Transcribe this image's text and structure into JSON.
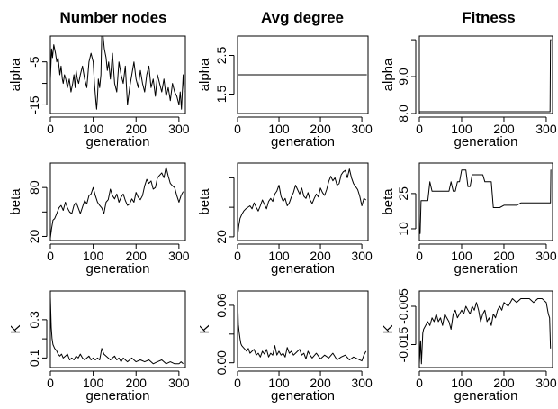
{
  "columns": [
    "Number nodes",
    "Avg degree",
    "Fitness"
  ],
  "chart_data": [
    {
      "type": "line",
      "column": "Number nodes",
      "xlabel": "generation",
      "ylabel": "alpha",
      "xlim": [
        0,
        315
      ],
      "ylim": [
        -17,
        1
      ],
      "xticks": [
        0,
        100,
        200,
        300
      ],
      "yticks": [
        -15,
        -10,
        -5
      ],
      "ytick_labels": [
        "-15",
        "",
        "-5"
      ],
      "x": [
        0,
        3,
        5,
        8,
        12,
        15,
        18,
        22,
        25,
        28,
        30,
        33,
        36,
        40,
        44,
        48,
        52,
        55,
        58,
        60,
        63,
        66,
        70,
        75,
        80,
        85,
        90,
        95,
        100,
        103,
        106,
        108,
        110,
        112,
        115,
        118,
        120,
        123,
        126,
        130,
        133,
        136,
        140,
        145,
        150,
        155,
        160,
        165,
        170,
        175,
        180,
        185,
        190,
        195,
        200,
        205,
        210,
        215,
        220,
        225,
        230,
        235,
        240,
        245,
        250,
        255,
        260,
        265,
        270,
        275,
        280,
        285,
        290,
        295,
        300,
        303,
        306,
        310,
        312
      ],
      "y": [
        -9,
        -2,
        -4,
        -1,
        -3,
        -5,
        -4,
        -8,
        -6,
        -9,
        -10,
        -8,
        -9,
        -11,
        -9,
        -12,
        -10,
        -8,
        -11,
        -7,
        -9,
        -10,
        -8,
        -6,
        -9,
        -11,
        -5,
        -3,
        -5,
        -10,
        -14,
        -16,
        -13,
        -9,
        -11,
        -8,
        1,
        1,
        -2,
        -4,
        -7,
        -5,
        -9,
        -3,
        -10,
        -12,
        -5,
        -8,
        -10,
        -6,
        -15,
        -11,
        -8,
        -5,
        -9,
        -11,
        -7,
        -10,
        -12,
        -8,
        -6,
        -11,
        -9,
        -13,
        -8,
        -10,
        -12,
        -9,
        -13,
        -11,
        -14,
        -10,
        -12,
        -13,
        -15,
        -12,
        -16,
        -8,
        -12
      ]
    },
    {
      "type": "line",
      "column": "Avg degree",
      "xlabel": "generation",
      "ylabel": "alpha",
      "xlim": [
        0,
        315
      ],
      "ylim": [
        1,
        3
      ],
      "xticks": [
        0,
        100,
        200,
        300
      ],
      "yticks": [
        1.5,
        2.5
      ],
      "ytick_labels": [
        "1.5",
        "2.5"
      ],
      "x": [
        0,
        312
      ],
      "y": [
        2,
        2
      ]
    },
    {
      "type": "line",
      "column": "Fitness",
      "xlabel": "generation",
      "ylabel": "alpha",
      "xlim": [
        0,
        315
      ],
      "ylim": [
        8,
        10.1
      ],
      "xticks": [
        0,
        100,
        200,
        300
      ],
      "yticks": [
        8,
        9,
        10
      ],
      "ytick_labels": [
        "8.0",
        "9.0",
        ""
      ],
      "x": [
        0,
        309,
        310,
        312
      ],
      "y": [
        8.05,
        8.05,
        10,
        10
      ]
    },
    {
      "type": "line",
      "column": "Number nodes",
      "xlabel": "generation",
      "ylabel": "beta",
      "xlim": [
        0,
        315
      ],
      "ylim": [
        15,
        110
      ],
      "xticks": [
        0,
        100,
        200,
        300
      ],
      "yticks": [
        20,
        50,
        80
      ],
      "ytick_labels": [
        "20",
        "",
        "80"
      ],
      "x": [
        0,
        3,
        6,
        10,
        15,
        20,
        25,
        30,
        35,
        40,
        45,
        50,
        55,
        60,
        65,
        70,
        75,
        80,
        85,
        90,
        95,
        100,
        105,
        110,
        115,
        120,
        125,
        130,
        135,
        140,
        145,
        150,
        155,
        160,
        165,
        170,
        175,
        180,
        185,
        190,
        195,
        200,
        205,
        210,
        215,
        220,
        225,
        230,
        235,
        240,
        245,
        250,
        255,
        260,
        265,
        270,
        275,
        280,
        285,
        290,
        295,
        300,
        305,
        310
      ],
      "y": [
        18,
        30,
        40,
        42,
        48,
        55,
        58,
        52,
        62,
        55,
        50,
        48,
        58,
        62,
        55,
        48,
        56,
        64,
        60,
        70,
        72,
        80,
        70,
        62,
        58,
        55,
        48,
        62,
        65,
        78,
        70,
        66,
        72,
        62,
        68,
        72,
        64,
        58,
        60,
        66,
        62,
        74,
        68,
        65,
        70,
        82,
        90,
        85,
        88,
        78,
        80,
        92,
        95,
        98,
        92,
        105,
        94,
        85,
        82,
        80,
        70,
        62,
        70,
        75
      ]
    },
    {
      "type": "line",
      "column": "Avg degree",
      "xlabel": "generation",
      "ylabel": "beta",
      "xlim": [
        0,
        315
      ],
      "ylim": [
        15,
        120
      ],
      "xticks": [
        0,
        100,
        200,
        300
      ],
      "yticks": [
        20,
        60,
        100
      ],
      "ytick_labels": [
        "20",
        "",
        ""
      ],
      "x": [
        0,
        3,
        6,
        10,
        15,
        20,
        25,
        30,
        35,
        40,
        45,
        50,
        55,
        60,
        65,
        70,
        75,
        80,
        85,
        90,
        95,
        100,
        105,
        110,
        115,
        120,
        125,
        130,
        135,
        140,
        145,
        150,
        155,
        160,
        165,
        170,
        175,
        180,
        185,
        190,
        195,
        200,
        205,
        210,
        215,
        220,
        225,
        230,
        235,
        240,
        245,
        250,
        255,
        260,
        265,
        270,
        275,
        280,
        285,
        290,
        295,
        300,
        305,
        310
      ],
      "y": [
        20,
        35,
        45,
        50,
        55,
        58,
        60,
        62,
        58,
        66,
        60,
        55,
        62,
        70,
        64,
        58,
        68,
        72,
        68,
        78,
        82,
        90,
        75,
        68,
        72,
        62,
        66,
        74,
        80,
        90,
        84,
        78,
        86,
        75,
        72,
        80,
        70,
        65,
        72,
        78,
        74,
        86,
        80,
        76,
        84,
        95,
        102,
        96,
        100,
        90,
        92,
        104,
        108,
        110,
        100,
        112,
        100,
        92,
        88,
        84,
        75,
        62,
        72,
        70
      ]
    },
    {
      "type": "line",
      "column": "Fitness",
      "xlabel": "generation",
      "ylabel": "beta",
      "xlim": [
        0,
        315
      ],
      "ylim": [
        5,
        38
      ],
      "xticks": [
        0,
        100,
        200,
        300
      ],
      "yticks": [
        10,
        25
      ],
      "ytick_labels": [
        "10",
        "25"
      ],
      "x": [
        0,
        2,
        4,
        6,
        12,
        20,
        25,
        30,
        35,
        60,
        70,
        75,
        80,
        85,
        90,
        95,
        100,
        105,
        110,
        115,
        120,
        125,
        130,
        140,
        150,
        155,
        160,
        165,
        170,
        175,
        180,
        190,
        200,
        210,
        220,
        230,
        240,
        250,
        260,
        270,
        280,
        290,
        300,
        310,
        311,
        312
      ],
      "y": [
        8,
        8,
        22,
        22,
        22,
        22,
        30,
        26,
        26,
        26,
        26,
        30,
        26,
        26,
        30,
        30,
        35,
        35,
        35,
        28,
        28,
        33,
        33,
        33,
        33,
        30,
        30,
        30,
        30,
        19,
        19,
        19,
        20,
        20,
        20,
        20,
        21,
        21,
        21,
        21,
        21,
        21,
        21,
        21,
        35,
        35
      ]
    },
    {
      "type": "line",
      "column": "Number nodes",
      "xlabel": "generation",
      "ylabel": "K",
      "xlim": [
        0,
        315
      ],
      "ylim": [
        0.05,
        0.45
      ],
      "xticks": [
        0,
        100,
        200,
        300
      ],
      "yticks": [
        0.1,
        0.2,
        0.3
      ],
      "ytick_labels": [
        "0.1",
        "",
        "0.3"
      ],
      "x": [
        0,
        2,
        4,
        6,
        8,
        10,
        14,
        18,
        22,
        26,
        30,
        35,
        40,
        45,
        50,
        55,
        60,
        65,
        70,
        75,
        80,
        85,
        90,
        95,
        100,
        105,
        110,
        115,
        120,
        125,
        130,
        135,
        140,
        145,
        150,
        155,
        160,
        165,
        170,
        175,
        180,
        190,
        200,
        210,
        220,
        230,
        240,
        250,
        260,
        270,
        280,
        290,
        300,
        305,
        310
      ],
      "y": [
        0.42,
        0.26,
        0.2,
        0.17,
        0.16,
        0.15,
        0.14,
        0.12,
        0.11,
        0.12,
        0.1,
        0.11,
        0.12,
        0.09,
        0.1,
        0.09,
        0.11,
        0.1,
        0.12,
        0.1,
        0.09,
        0.1,
        0.11,
        0.09,
        0.1,
        0.09,
        0.1,
        0.09,
        0.15,
        0.12,
        0.11,
        0.1,
        0.09,
        0.1,
        0.11,
        0.09,
        0.1,
        0.08,
        0.1,
        0.09,
        0.08,
        0.1,
        0.08,
        0.09,
        0.08,
        0.09,
        0.07,
        0.08,
        0.09,
        0.07,
        0.08,
        0.07,
        0.07,
        0.08,
        0.07
      ]
    },
    {
      "type": "line",
      "column": "Avg degree",
      "xlabel": "generation",
      "ylabel": "K",
      "xlim": [
        0,
        315
      ],
      "ylim": [
        -0.005,
        0.075
      ],
      "xticks": [
        0,
        100,
        200,
        300
      ],
      "yticks": [
        0,
        0.03,
        0.06
      ],
      "ytick_labels": [
        "0.00",
        "",
        "0.06"
      ],
      "x": [
        0,
        2,
        4,
        6,
        8,
        10,
        14,
        18,
        22,
        26,
        30,
        35,
        40,
        45,
        50,
        55,
        60,
        65,
        70,
        75,
        80,
        85,
        90,
        95,
        100,
        105,
        110,
        115,
        120,
        125,
        130,
        135,
        140,
        145,
        150,
        155,
        160,
        165,
        170,
        175,
        180,
        190,
        200,
        210,
        220,
        230,
        240,
        250,
        260,
        270,
        280,
        290,
        300,
        305,
        310
      ],
      "y": [
        0.07,
        0.04,
        0.032,
        0.025,
        0.02,
        0.018,
        0.016,
        0.014,
        0.012,
        0.015,
        0.01,
        0.012,
        0.014,
        0.008,
        0.01,
        0.006,
        0.012,
        0.009,
        0.014,
        0.006,
        0.01,
        0.008,
        0.018,
        0.008,
        0.012,
        0.008,
        0.01,
        0.006,
        0.016,
        0.01,
        0.012,
        0.008,
        0.01,
        0.012,
        0.014,
        0.008,
        0.01,
        0.004,
        0.012,
        0.008,
        0.005,
        0.01,
        0.004,
        0.008,
        0.005,
        0.01,
        0.003,
        0.006,
        0.008,
        0.003,
        0.006,
        0.004,
        0.002,
        0.008,
        0.012
      ]
    },
    {
      "type": "line",
      "column": "Fitness",
      "xlabel": "generation",
      "ylabel": "K",
      "xlim": [
        0,
        315
      ],
      "ylim": [
        -0.021,
        -0.001
      ],
      "xticks": [
        0,
        100,
        200,
        300
      ],
      "yticks": [
        -0.015,
        -0.005
      ],
      "ytick_labels": [
        "-0.015",
        "-0.005"
      ],
      "x": [
        0,
        3,
        5,
        8,
        10,
        15,
        20,
        25,
        30,
        35,
        40,
        45,
        50,
        55,
        60,
        65,
        70,
        75,
        80,
        85,
        90,
        95,
        100,
        105,
        110,
        115,
        120,
        125,
        130,
        135,
        140,
        145,
        150,
        155,
        160,
        165,
        170,
        175,
        180,
        185,
        190,
        195,
        200,
        210,
        220,
        230,
        240,
        250,
        260,
        270,
        280,
        290,
        300,
        305,
        308,
        310
      ],
      "y": [
        -0.02,
        -0.014,
        -0.02,
        -0.012,
        -0.011,
        -0.01,
        -0.009,
        -0.01,
        -0.008,
        -0.009,
        -0.007,
        -0.009,
        -0.008,
        -0.01,
        -0.007,
        -0.008,
        -0.009,
        -0.011,
        -0.007,
        -0.006,
        -0.008,
        -0.007,
        -0.006,
        -0.007,
        -0.005,
        -0.006,
        -0.007,
        -0.005,
        -0.006,
        -0.004,
        -0.006,
        -0.009,
        -0.007,
        -0.006,
        -0.009,
        -0.008,
        -0.01,
        -0.007,
        -0.008,
        -0.006,
        -0.005,
        -0.006,
        -0.004,
        -0.005,
        -0.003,
        -0.004,
        -0.003,
        -0.003,
        -0.003,
        -0.004,
        -0.003,
        -0.003,
        -0.004,
        -0.007,
        -0.008,
        -0.016
      ]
    }
  ]
}
